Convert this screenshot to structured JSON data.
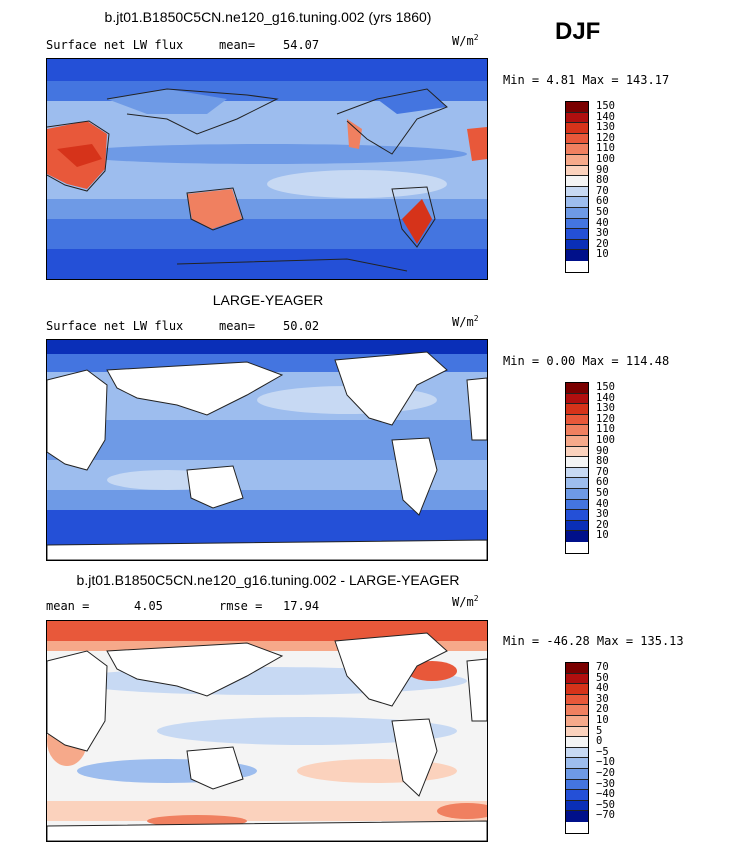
{
  "season": "DJF",
  "panels": [
    {
      "title": "b.jt01.B1850C5CN.ne120_g16.tuning.002 (yrs 1860)",
      "left_label": "Surface net LW flux",
      "stat_label": "mean=",
      "stat_value": "54.07",
      "units": "W/m",
      "units_sup": "2",
      "minmax": "Min =   4.81 Max = 143.17",
      "colorbar": {
        "labels": [
          "150",
          "140",
          "130",
          "120",
          "110",
          "100",
          "90",
          "80",
          "70",
          "60",
          "50",
          "40",
          "30",
          "20",
          "10"
        ],
        "colors": [
          "#7a0000",
          "#b00f0f",
          "#d6331a",
          "#e8583a",
          "#f08060",
          "#f6a98a",
          "#fbd2bd",
          "#f4f4f4",
          "#c7d9f3",
          "#9dbdee",
          "#6e9ae6",
          "#4475e0",
          "#2450d7",
          "#0a2fb8",
          "#00108a"
        ]
      }
    },
    {
      "title": "LARGE-YEAGER",
      "left_label": "Surface net LW flux",
      "stat_label": "mean=",
      "stat_value": "50.02",
      "units": "W/m",
      "units_sup": "2",
      "minmax": "Min =   0.00 Max = 114.48",
      "colorbar": {
        "labels": [
          "150",
          "140",
          "130",
          "120",
          "110",
          "100",
          "90",
          "80",
          "70",
          "60",
          "50",
          "40",
          "30",
          "20",
          "10"
        ],
        "colors": [
          "#7a0000",
          "#b00f0f",
          "#d6331a",
          "#e8583a",
          "#f08060",
          "#f6a98a",
          "#fbd2bd",
          "#f4f4f4",
          "#c7d9f3",
          "#9dbdee",
          "#6e9ae6",
          "#4475e0",
          "#2450d7",
          "#0a2fb8",
          "#00108a"
        ]
      }
    },
    {
      "title": "b.jt01.B1850C5CN.ne120_g16.tuning.002 - LARGE-YEAGER",
      "left_label": "mean =",
      "left_value": "4.05",
      "stat_label": "rmse =",
      "stat_value": "17.94",
      "units": "W/m",
      "units_sup": "2",
      "minmax": "Min = -46.28 Max = 135.13",
      "colorbar": {
        "labels": [
          "70",
          "50",
          "40",
          "30",
          "20",
          "10",
          "5",
          "0",
          "−5",
          "−10",
          "−20",
          "−30",
          "−40",
          "−50",
          "−70"
        ],
        "colors": [
          "#7a0000",
          "#b00f0f",
          "#d6331a",
          "#e8583a",
          "#f08060",
          "#f6a98a",
          "#fbd2bd",
          "#f4f4f4",
          "#c7d9f3",
          "#9dbdee",
          "#6e9ae6",
          "#4475e0",
          "#2450d7",
          "#0a2fb8",
          "#00108a"
        ]
      }
    }
  ]
}
